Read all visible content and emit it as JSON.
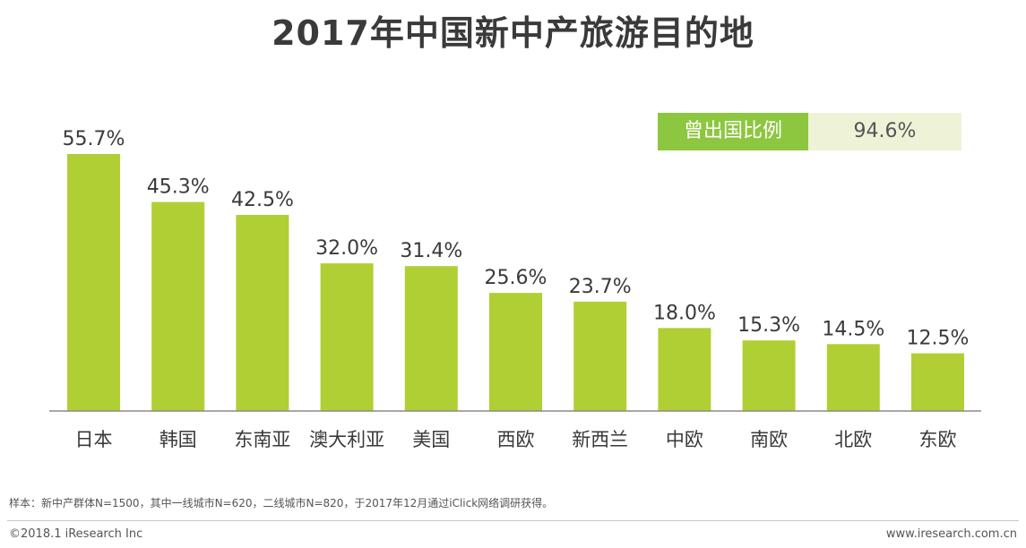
{
  "chart_data": {
    "type": "bar",
    "title": "2017年中国新中产旅游目的地",
    "categories": [
      "日本",
      "韩国",
      "东南亚",
      "澳大利亚",
      "美国",
      "西欧",
      "新西兰",
      "中欧",
      "南欧",
      "北欧",
      "东欧"
    ],
    "values": [
      55.7,
      45.3,
      42.5,
      32.0,
      31.4,
      25.6,
      23.7,
      18.0,
      15.3,
      14.5,
      12.5
    ],
    "value_labels": [
      "55.7%",
      "45.3%",
      "42.5%",
      "32.0%",
      "31.4%",
      "25.6%",
      "23.7%",
      "18.0%",
      "15.3%",
      "14.5%",
      "12.5%"
    ],
    "xlabel": "",
    "ylabel": "",
    "ylim": [
      0,
      55.7
    ],
    "grid": false,
    "bar_color": "#b0cf34",
    "legend": {
      "label": "曾出国比例",
      "value": "94.6%",
      "label_color": "#8dc63f",
      "value_bg_color": "#eef3d7"
    }
  },
  "footnote": "样本：新中产群体N=1500，其中一线城市N=620，二线城市N=820，于2017年12月通过iClick网络调研获得。",
  "copyright": "©2018.1 iResearch Inc",
  "website": "www.iresearch.com.cn"
}
